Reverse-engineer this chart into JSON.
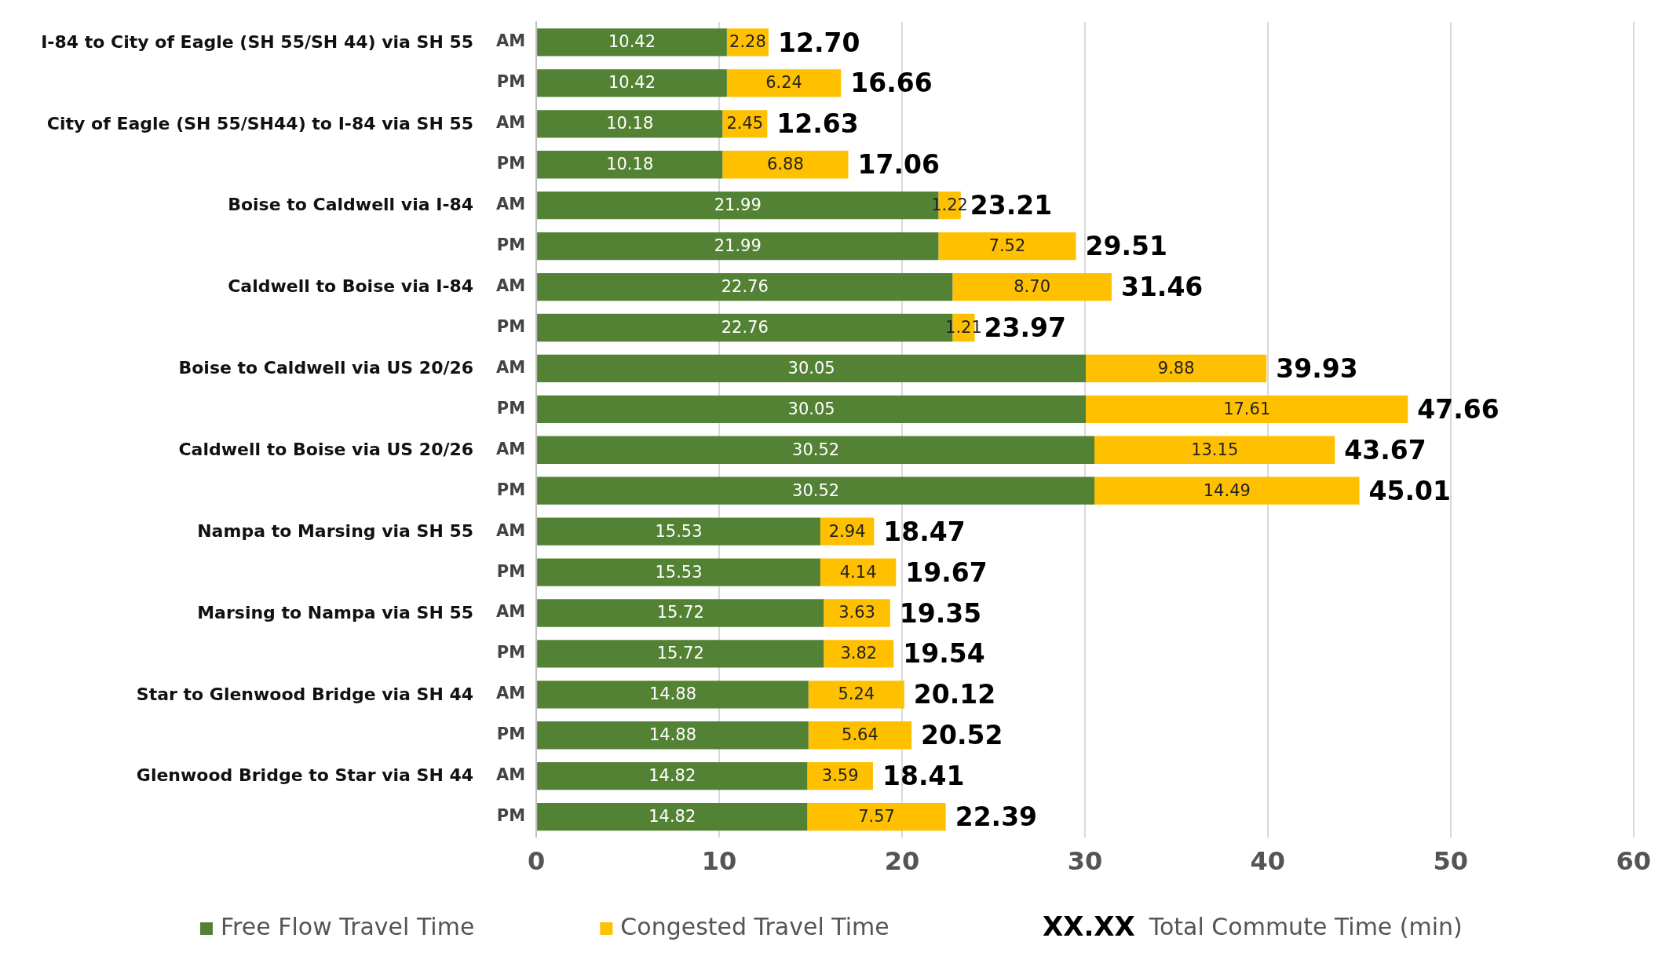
{
  "chart_data": {
    "type": "bar",
    "orientation": "horizontal",
    "stacked": true,
    "categories": [
      "AM",
      "PM",
      "AM",
      "PM",
      "AM",
      "PM",
      "AM",
      "PM",
      "AM",
      "PM",
      "AM",
      "PM",
      "AM",
      "PM",
      "AM",
      "PM",
      "AM",
      "PM",
      "AM",
      "PM"
    ],
    "series": [
      {
        "name": "Free Flow Travel Time",
        "color": "#548235",
        "values": [
          10.42,
          10.42,
          10.18,
          10.18,
          21.99,
          21.99,
          22.76,
          22.76,
          30.05,
          30.05,
          30.52,
          30.52,
          15.53,
          15.53,
          15.72,
          15.72,
          14.88,
          14.88,
          14.82,
          14.82
        ]
      },
      {
        "name": "Congested Travel Time",
        "color": "#ffc000",
        "values": [
          2.28,
          6.24,
          2.45,
          6.88,
          1.22,
          7.52,
          8.7,
          1.21,
          9.88,
          17.61,
          13.15,
          14.49,
          2.94,
          4.14,
          3.63,
          3.82,
          5.24,
          5.64,
          3.59,
          7.57
        ]
      }
    ],
    "value_labels": [
      [
        "10.42",
        "10.42",
        "10.18",
        "10.18",
        "21.99",
        "21.99",
        "22.76",
        "22.76",
        "30.05",
        "30.05",
        "30.52",
        "30.52",
        "15.53",
        "15.53",
        "15.72",
        "15.72",
        "14.88",
        "14.88",
        "14.82",
        "14.82"
      ],
      [
        "2.28",
        "6.24",
        "2.45",
        "6.88",
        "1.22",
        "7.52",
        "8.70",
        "1.21",
        "9.88",
        "17.61",
        "13.15",
        "14.49",
        "2.94",
        "4.14",
        "3.63",
        "3.82",
        "5.24",
        "5.64",
        "3.59",
        "7.57"
      ]
    ],
    "totals": [
      "12.70",
      "16.66",
      "12.63",
      "17.06",
      "23.21",
      "29.51",
      "31.46",
      "23.97",
      "39.93",
      "47.66",
      "43.67",
      "45.01",
      "18.47",
      "19.67",
      "19.35",
      "19.54",
      "20.12",
      "20.52",
      "18.41",
      "22.39"
    ],
    "annotations": [
      "I-84 to City of Eagle (SH 55/SH 44) via SH 55",
      "City of Eagle (SH 55/SH44) to I-84 via SH 55",
      "Boise to Caldwell via I-84",
      "Caldwell to Boise via I-84",
      "Boise to Caldwell via US 20/26",
      "Caldwell to Boise via US 20/26",
      "Nampa to Marsing via SH 55",
      "Marsing to Nampa via SH 55",
      "Star to Glenwood Bridge via SH 44",
      "Glenwood Bridge to Star via SH 44",
      "XX.XX",
      "Total Commute Time (min)"
    ],
    "xlim": [
      0,
      60
    ],
    "xticks": [
      0,
      10,
      20,
      30,
      40,
      50,
      60
    ],
    "grid": "x",
    "legend": "bottom"
  }
}
